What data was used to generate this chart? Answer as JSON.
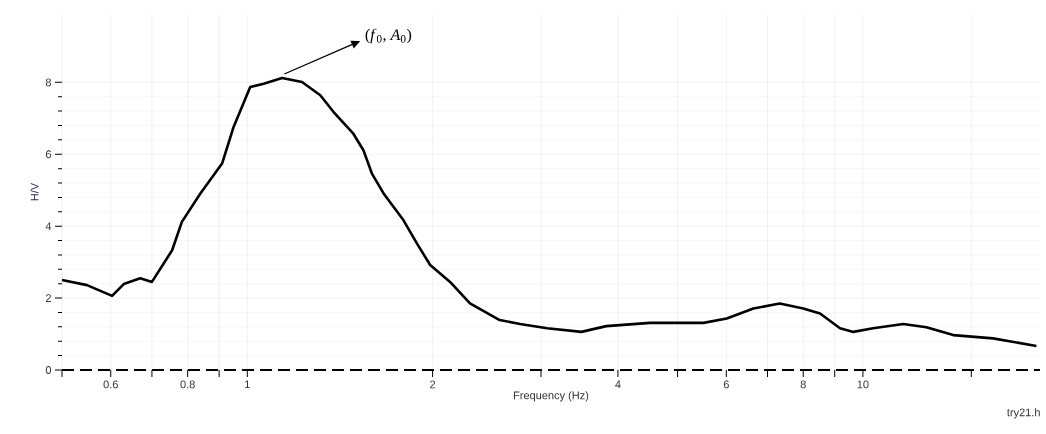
{
  "chart_data": {
    "type": "line",
    "xlabel": "Frequency (Hz)",
    "ylabel": "H/V",
    "log": "x",
    "grid": true,
    "marker": "none",
    "line_style": "solid",
    "xlim": [
      0.5,
      19.4
    ],
    "ylim": [
      0,
      9.9
    ],
    "xticks": [
      {
        "value": 0.5,
        "label": null
      },
      0.6,
      {
        "value": 0.7,
        "label": null
      },
      0.8,
      {
        "value": 0.9,
        "label": null
      },
      1,
      2,
      {
        "value": 3,
        "label": null
      },
      4,
      {
        "value": 5,
        "label": null
      },
      6,
      {
        "value": 7,
        "label": null
      },
      8,
      {
        "value": 9,
        "label": null
      },
      10,
      {
        "value": 15,
        "label": null
      }
    ],
    "yticks": [
      0,
      2,
      4,
      6,
      8
    ],
    "ref_lines": [
      {
        "axis": "y",
        "value": 0,
        "line_style": "dashed",
        "color": "#000000"
      }
    ],
    "annotations": [
      {
        "text": "(*f*$_{0}$, *A*$_{0}$)",
        "x": 1.14,
        "y": 8.12
      },
      "try21.h"
    ],
    "series": [
      {
        "color": "#000000",
        "x": [
          0.5,
          0.549,
          0.603,
          0.63,
          0.67,
          0.7,
          0.755,
          0.783,
          0.839,
          0.91,
          0.95,
          1.011,
          1.063,
          1.139,
          1.227,
          1.314,
          1.38,
          1.487,
          1.544,
          1.594,
          1.665,
          1.793,
          1.886,
          1.982,
          2.135,
          2.3,
          2.57,
          2.774,
          3.07,
          3.49,
          3.83,
          4.51,
          5.51,
          6.01,
          6.64,
          7.33,
          8.0,
          8.52,
          9.18,
          9.65,
          10.39,
          11.63,
          12.68,
          14.02,
          16.27,
          19.14
        ],
        "values": [
          2.5,
          2.36,
          2.06,
          2.39,
          2.55,
          2.45,
          3.33,
          4.12,
          4.91,
          5.74,
          6.76,
          7.87,
          7.96,
          8.12,
          8.01,
          7.64,
          7.18,
          6.57,
          6.11,
          5.46,
          4.91,
          4.17,
          3.52,
          2.92,
          2.45,
          1.85,
          1.39,
          1.28,
          1.16,
          1.06,
          1.22,
          1.31,
          1.31,
          1.43,
          1.71,
          1.85,
          1.71,
          1.57,
          1.16,
          1.06,
          1.16,
          1.28,
          1.19,
          0.97,
          0.88,
          0.67
        ]
      }
    ]
  }
}
